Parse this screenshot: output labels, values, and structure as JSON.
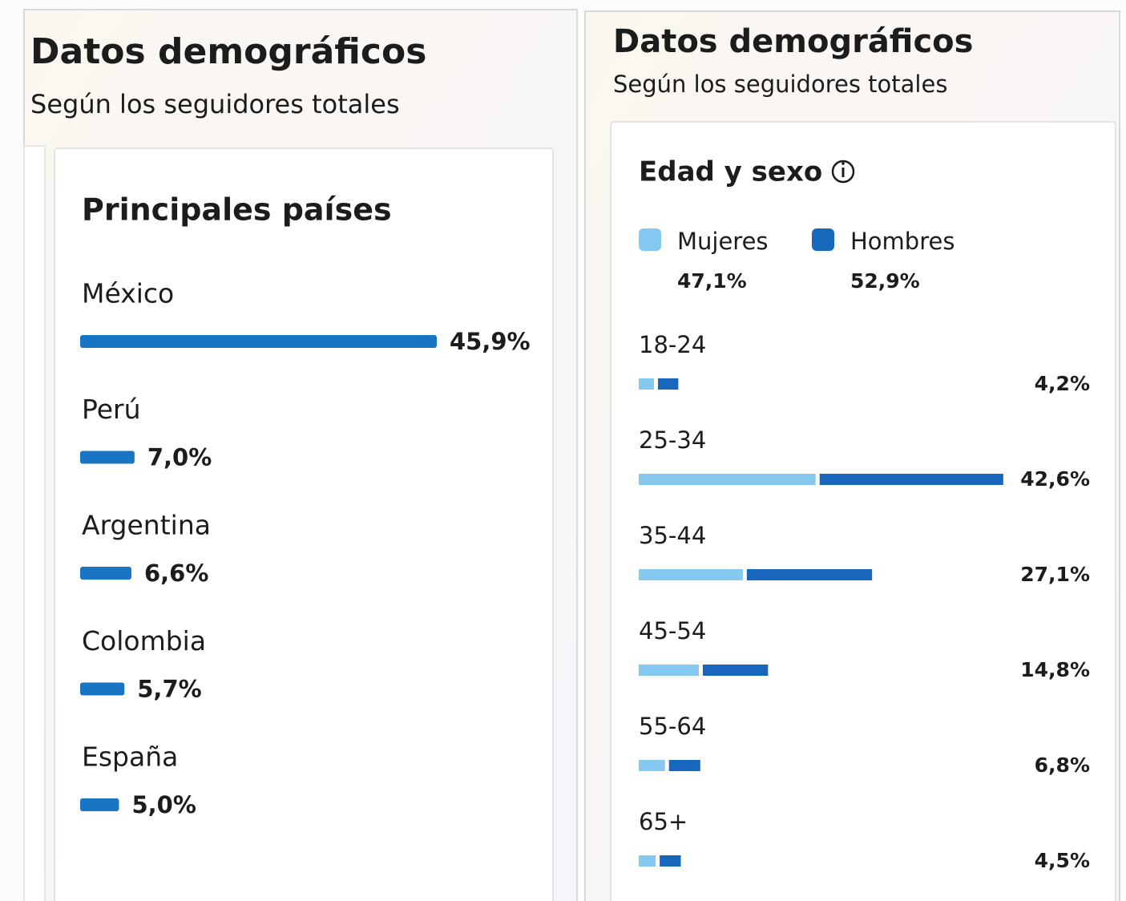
{
  "chart_data": [
    {
      "type": "bar",
      "panel_title": "Datos demográficos",
      "subtitle": "Según los seguidores totales",
      "title": "Principales países",
      "categories": [
        "México",
        "Perú",
        "Argentina",
        "Colombia",
        "España"
      ],
      "values": [
        45.9,
        7.0,
        6.6,
        5.7,
        5.0
      ],
      "value_labels": [
        "45,9%",
        "7,0%",
        "6,6%",
        "5,7%",
        "5,0%"
      ],
      "color": "#1a74c4"
    },
    {
      "type": "stacked_bar",
      "panel_title": "Datos demográficos",
      "subtitle": "Según los seguidores totales",
      "title": "Edad y sexo",
      "categories": [
        "18-24",
        "25-34",
        "35-44",
        "45-54",
        "55-64",
        "65+"
      ],
      "series": [
        {
          "name": "Mujeres",
          "color": "#85c8f0",
          "share": 47.1,
          "share_label": "47,1%",
          "values": [
            1.8,
            20.9,
            12.3,
            7.1,
            3.1,
            2.0
          ]
        },
        {
          "name": "Hombres",
          "color": "#1767bd",
          "share": 52.9,
          "share_label": "52,9%",
          "values": [
            2.4,
            21.7,
            14.8,
            7.7,
            3.7,
            2.5
          ]
        }
      ],
      "totals": [
        4.2,
        42.6,
        27.1,
        14.8,
        6.8,
        4.5
      ],
      "total_labels": [
        "4,2%",
        "42,6%",
        "27,1%",
        "14,8%",
        "6,8%",
        "4,5%"
      ]
    }
  ]
}
